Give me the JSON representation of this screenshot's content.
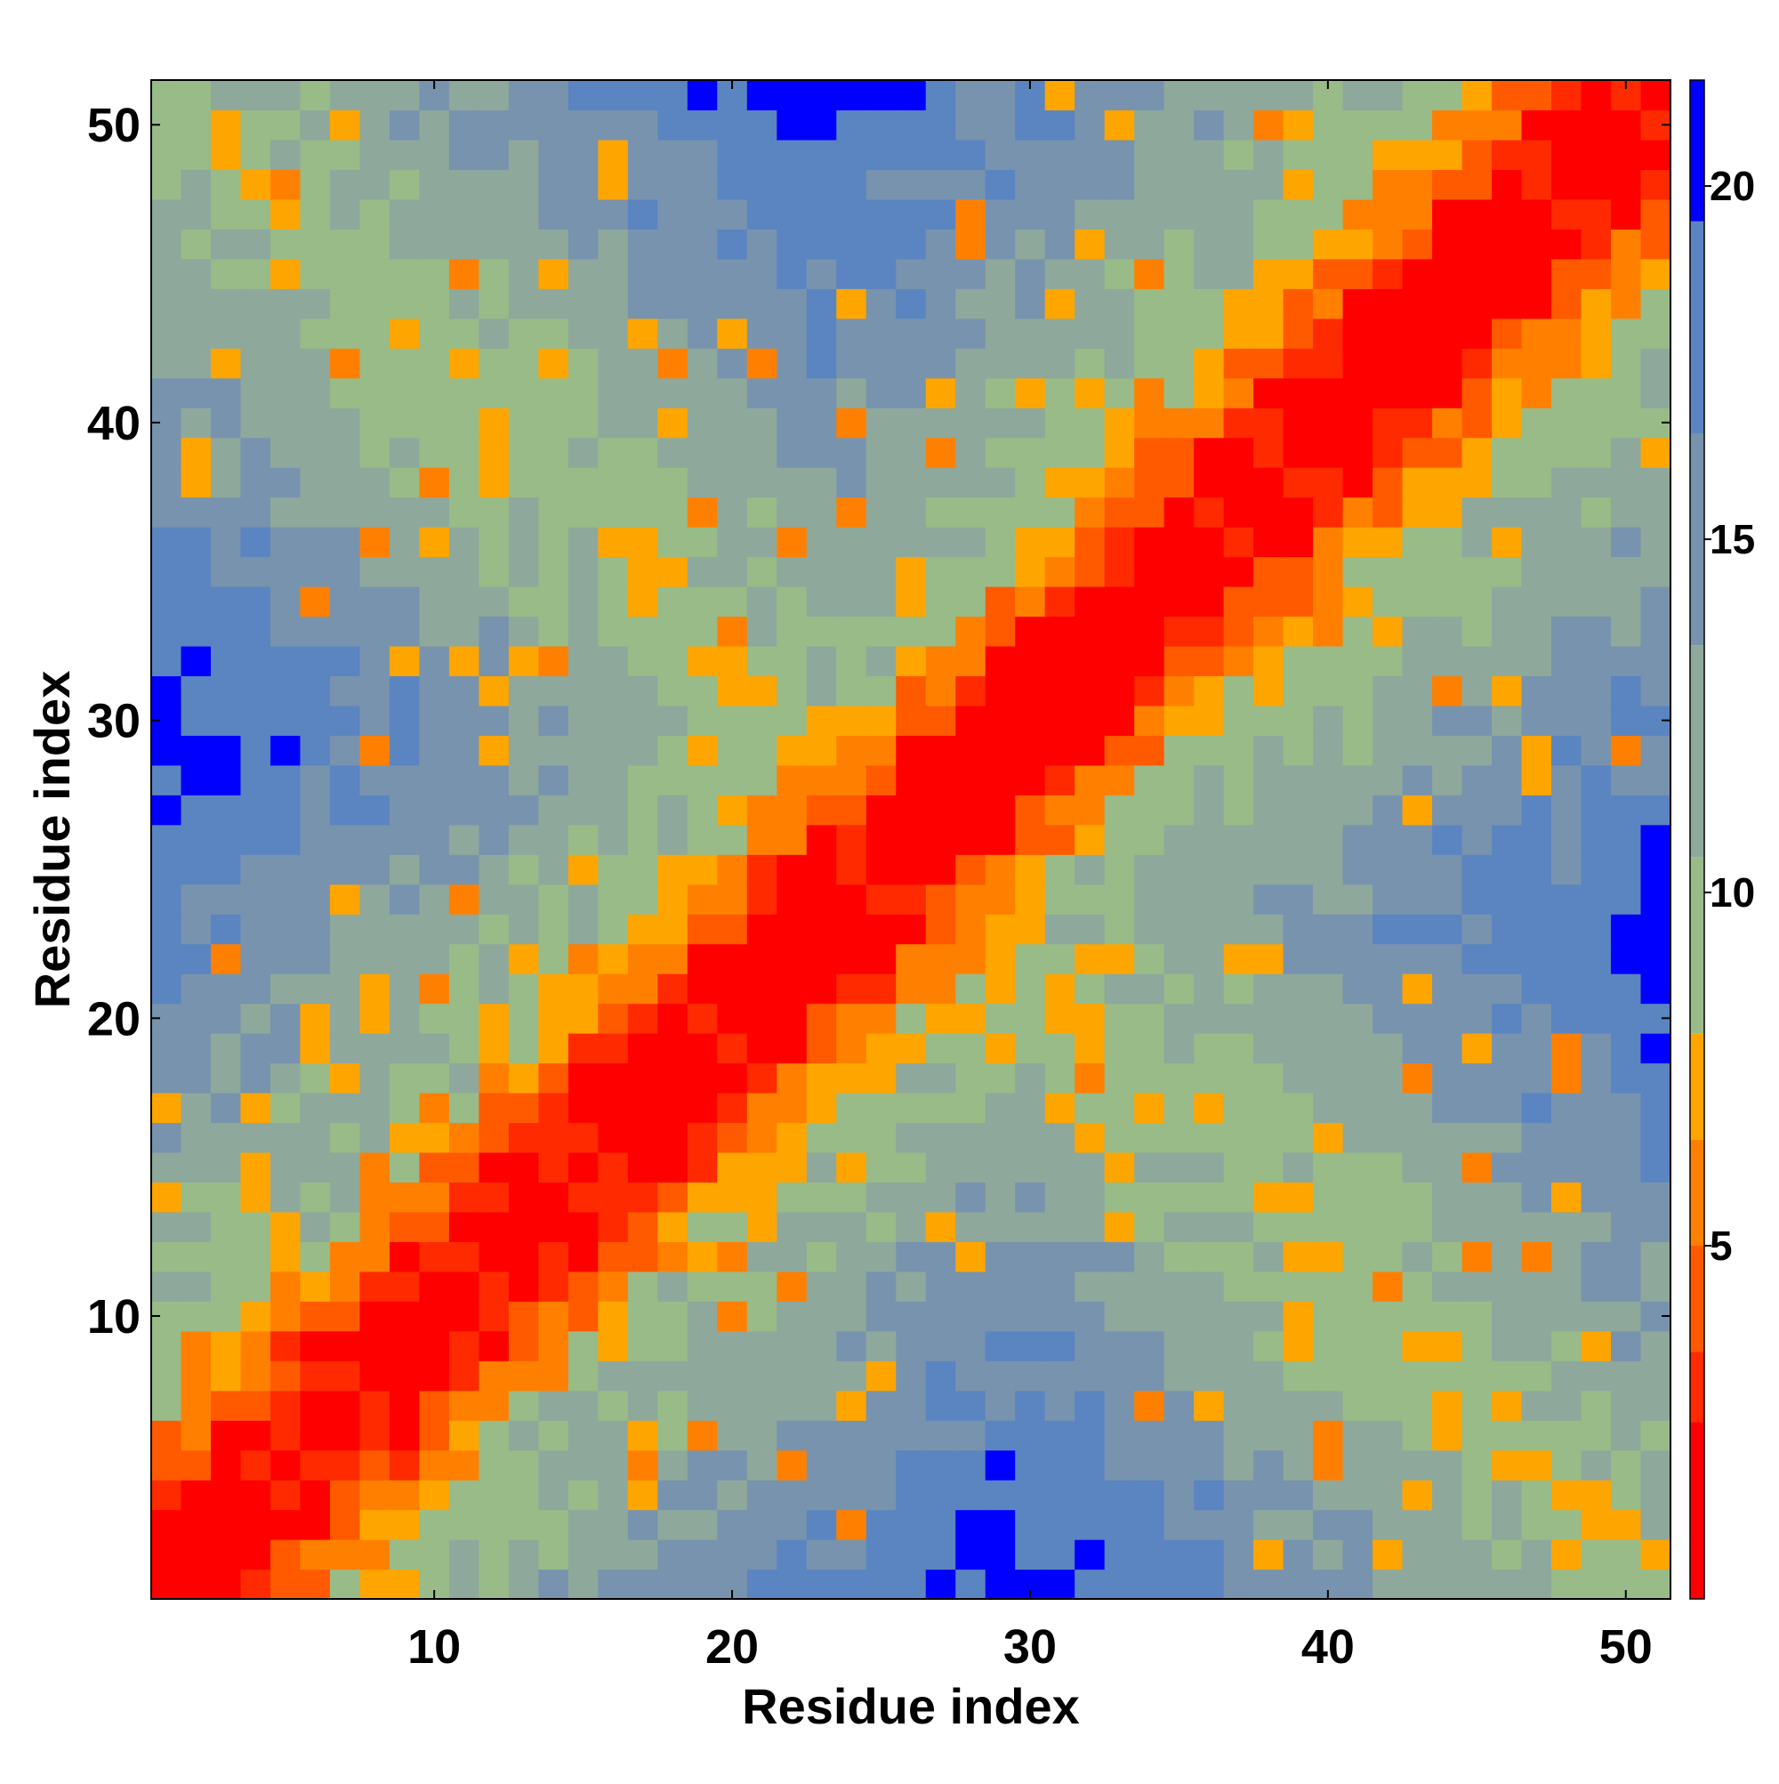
{
  "chart_data": {
    "type": "heatmap",
    "title": "",
    "xlabel": "Residue index",
    "ylabel": "Residue index",
    "n": 51,
    "xlim": [
      0.5,
      51.5
    ],
    "ylim": [
      0.5,
      51.5
    ],
    "x_ticks": [
      10,
      20,
      30,
      40,
      50
    ],
    "y_ticks": [
      10,
      20,
      30,
      40,
      50
    ],
    "colorbar": {
      "range": [
        0,
        21.5
      ],
      "ticks": [
        5,
        10,
        15,
        20
      ],
      "colors": [
        "#ff0000",
        "#ff2a00",
        "#ff5a00",
        "#ff8000",
        "#ffa500",
        "#98bb88",
        "#8ea89c",
        "#7893ad",
        "#5b85c0",
        "#0000ff"
      ],
      "boundaries": [
        0,
        2.5,
        3.5,
        5,
        6.5,
        8,
        10.5,
        13.5,
        16.5,
        19.5,
        21.5
      ],
      "cap_color": "#0000ff"
    },
    "matrix_description_note": ""
  }
}
